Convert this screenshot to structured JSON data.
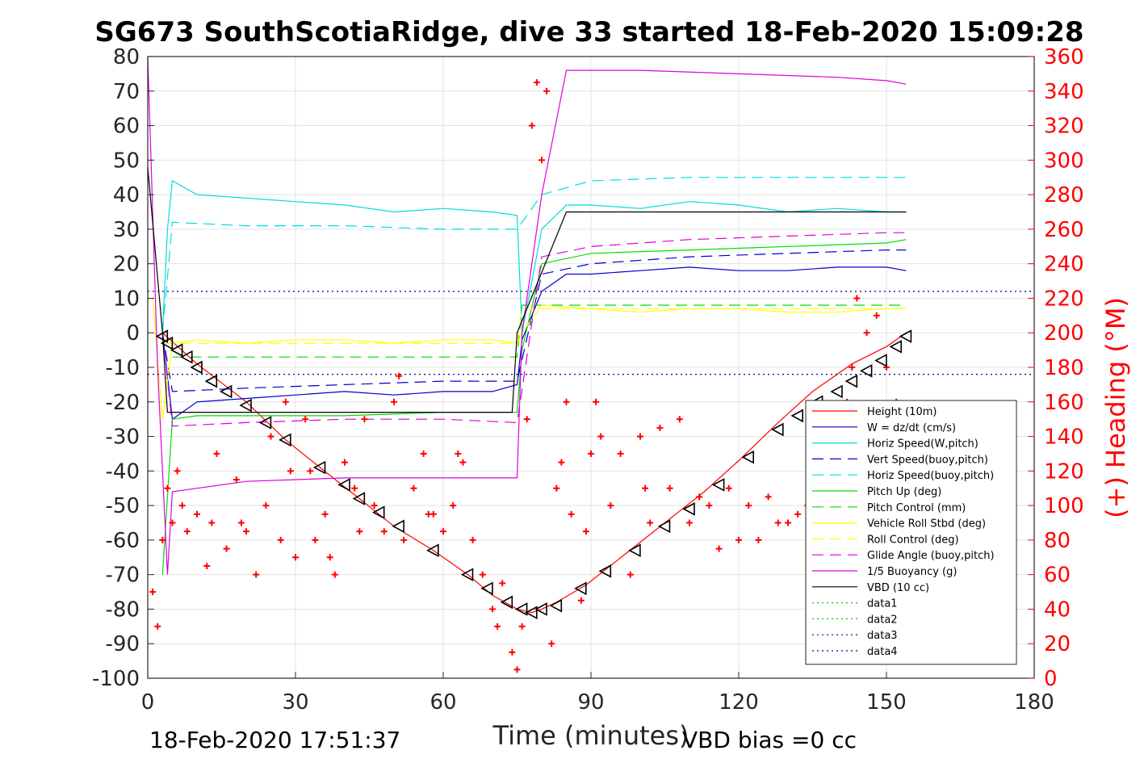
{
  "chart_data": {
    "type": "line",
    "title": "SG673 SouthScotiaRidge, dive 33 started 18-Feb-2020 15:09:28",
    "xlabel": "Time (minutes)",
    "ylabel_right": "(+) Heading (°M)",
    "xlim": [
      0,
      180
    ],
    "ylim_left": [
      -100,
      80
    ],
    "ylim_right": [
      0,
      360
    ],
    "x_ticks": [
      "0",
      "30",
      "60",
      "90",
      "120",
      "150",
      "180"
    ],
    "y_left_ticks": [
      "80",
      "70",
      "60",
      "50",
      "40",
      "30",
      "20",
      "10",
      "0",
      "-10",
      "-20",
      "-30",
      "-40",
      "-50",
      "-60",
      "-70",
      "-80",
      "-90",
      "-100"
    ],
    "y_right_ticks": [
      "360",
      "340",
      "320",
      "300",
      "280",
      "260",
      "240",
      "220",
      "200",
      "180",
      "160",
      "140",
      "120",
      "100",
      "80",
      "60",
      "40",
      "20",
      "0"
    ],
    "grid": true,
    "legend_placement": "lower-right",
    "footer_left": "18-Feb-2020 17:51:37",
    "footer_right": "VBD bias =0 cc",
    "series": [
      {
        "name": "Height (10m)",
        "color": "#ff0000",
        "style": "solid",
        "x": [
          3,
          10,
          20,
          28,
          35,
          43,
          50,
          58,
          65,
          70,
          75,
          78,
          80,
          83,
          89,
          97,
          105,
          113,
          120,
          128,
          135,
          143,
          150,
          154
        ],
        "y": [
          0,
          -9,
          -20,
          -31,
          -39,
          -48,
          -56,
          -63,
          -70,
          -76,
          -80,
          -81,
          -80,
          -78,
          -73,
          -64,
          -55,
          -46,
          -37,
          -26,
          -17,
          -9,
          -4,
          0
        ]
      },
      {
        "name": "W = dz/dt (cm/s)",
        "color": "#0000cc",
        "style": "solid",
        "x": [
          3,
          5,
          10,
          20,
          30,
          40,
          50,
          60,
          70,
          75,
          76,
          80,
          85,
          90,
          100,
          110,
          120,
          130,
          140,
          150,
          154
        ],
        "y": [
          0,
          -25,
          -20,
          -19,
          -18,
          -17,
          -18,
          -17,
          -17,
          -15,
          -2,
          12,
          17,
          17,
          18,
          19,
          18,
          18,
          19,
          19,
          18
        ]
      },
      {
        "name": "Horiz Speed(W,pitch)",
        "color": "#00dddd",
        "style": "solid",
        "x": [
          3,
          4,
          5,
          10,
          20,
          30,
          40,
          50,
          60,
          70,
          75,
          76,
          80,
          85,
          90,
          100,
          110,
          120,
          130,
          140,
          150,
          154
        ],
        "y": [
          0,
          30,
          44,
          40,
          39,
          38,
          37,
          35,
          36,
          35,
          34,
          0,
          30,
          37,
          37,
          36,
          38,
          37,
          35,
          36,
          35,
          35
        ]
      },
      {
        "name": "Vert Speed(buoy,pitch)",
        "color": "#0000cc",
        "style": "dashed",
        "x": [
          3,
          5,
          20,
          40,
          60,
          75,
          80,
          90,
          110,
          130,
          150,
          154
        ],
        "y": [
          0,
          -17,
          -16,
          -15,
          -14,
          -14,
          17,
          20,
          22,
          23,
          24,
          24
        ]
      },
      {
        "name": "Horiz Speed(buoy,pitch)",
        "color": "#00dddd",
        "style": "dashed",
        "x": [
          3,
          5,
          20,
          40,
          60,
          75,
          80,
          90,
          110,
          130,
          150,
          154
        ],
        "y": [
          0,
          32,
          31,
          31,
          30,
          30,
          40,
          44,
          45,
          45,
          45,
          45
        ]
      },
      {
        "name": "Pitch Up (deg)",
        "color": "#00dd00",
        "style": "solid",
        "x": [
          3,
          5,
          10,
          20,
          40,
          60,
          75,
          76,
          80,
          90,
          110,
          130,
          150,
          154
        ],
        "y": [
          -70,
          -25,
          -24,
          -24,
          -24,
          -23,
          -23,
          -5,
          20,
          23,
          24,
          25,
          26,
          27
        ]
      },
      {
        "name": "Pitch Control (mm)",
        "color": "#00dd00",
        "style": "dashed",
        "x": [
          5,
          75,
          76,
          154
        ],
        "y": [
          -7,
          -7,
          8,
          8
        ]
      },
      {
        "name": "Vehicle Roll Stbd (deg)",
        "color": "#ffff00",
        "style": "solid",
        "x": [
          1,
          3,
          5,
          10,
          20,
          30,
          40,
          50,
          60,
          70,
          75,
          76,
          80,
          90,
          100,
          110,
          120,
          130,
          140,
          150,
          154
        ],
        "y": [
          10,
          -25,
          -3,
          -2,
          -3,
          -2,
          -2,
          -3,
          -2,
          -2,
          -3,
          0,
          8,
          7,
          6,
          7,
          7,
          6,
          6,
          7,
          7
        ]
      },
      {
        "name": "Roll Control (deg)",
        "color": "#ffff00",
        "style": "dashed",
        "x": [
          3,
          75,
          76,
          154
        ],
        "y": [
          -3,
          -3,
          7,
          7
        ]
      },
      {
        "name": "Glide Angle (buoy,pitch)",
        "color": "#dd00dd",
        "style": "dashed",
        "x": [
          3,
          5,
          20,
          40,
          60,
          75,
          80,
          90,
          110,
          130,
          150,
          154
        ],
        "y": [
          0,
          -27,
          -26,
          -25,
          -25,
          -26,
          22,
          25,
          27,
          28,
          29,
          29
        ]
      },
      {
        "name": "1/5 Buoyancy (g)",
        "color": "#dd00dd",
        "style": "solid",
        "x": [
          0,
          2,
          4,
          5,
          20,
          40,
          60,
          75,
          76,
          80,
          85,
          100,
          120,
          140,
          150,
          154
        ],
        "y": [
          80,
          -10,
          -70,
          -46,
          -43,
          -42,
          -42,
          -42,
          0,
          40,
          76,
          76,
          75,
          74,
          73,
          72
        ]
      },
      {
        "name": "VBD (10 cc)",
        "color": "#000000",
        "style": "solid",
        "x": [
          0,
          3,
          4,
          74,
          75,
          85,
          154
        ],
        "y": [
          48,
          0,
          -23,
          -23,
          0,
          35,
          35
        ]
      },
      {
        "name": "data1",
        "color": "#00cc00",
        "style": "dotted",
        "x": [],
        "y": []
      },
      {
        "name": "data2",
        "color": "#00cc00",
        "style": "dotted",
        "x": [],
        "y": []
      },
      {
        "name": "data3",
        "color": "#000088",
        "style": "dotted",
        "x": [
          0,
          180
        ],
        "y": [
          12,
          12
        ]
      },
      {
        "name": "data4",
        "color": "#000088",
        "style": "dotted",
        "x": [
          0,
          180
        ],
        "y": [
          -12,
          -12
        ]
      }
    ],
    "heading": {
      "axis": "right",
      "color": "#ff0000",
      "marker": "+",
      "x": [
        1,
        2,
        3,
        4,
        5,
        6,
        7,
        8,
        10,
        12,
        13,
        14,
        16,
        18,
        19,
        20,
        22,
        24,
        25,
        27,
        28,
        29,
        30,
        32,
        33,
        34,
        36,
        37,
        38,
        40,
        42,
        43,
        44,
        46,
        48,
        50,
        51,
        52,
        54,
        56,
        57,
        58,
        60,
        62,
        63,
        64,
        66,
        68,
        70,
        71,
        72,
        74,
        75,
        76,
        77,
        78,
        79,
        80,
        81,
        82,
        83,
        84,
        85,
        86,
        88,
        89,
        90,
        91,
        92,
        94,
        96,
        98,
        100,
        101,
        102,
        104,
        106,
        108,
        110,
        112,
        114,
        116,
        118,
        120,
        122,
        124,
        126,
        128,
        130,
        132,
        134,
        136,
        138,
        140,
        142,
        143,
        144,
        146,
        148,
        150,
        152,
        154
      ],
      "y": [
        50,
        30,
        80,
        110,
        90,
        120,
        100,
        85,
        95,
        65,
        90,
        130,
        75,
        115,
        90,
        85,
        60,
        100,
        140,
        80,
        160,
        120,
        70,
        150,
        120,
        80,
        95,
        70,
        60,
        125,
        110,
        85,
        150,
        100,
        85,
        160,
        175,
        80,
        110,
        130,
        95,
        95,
        85,
        100,
        130,
        125,
        80,
        60,
        40,
        30,
        55,
        15,
        5,
        30,
        150,
        320,
        345,
        300,
        340,
        20,
        110,
        125,
        160,
        95,
        45,
        85,
        130,
        160,
        140,
        100,
        130,
        60,
        140,
        110,
        90,
        145,
        110,
        150,
        90,
        105,
        100,
        75,
        110,
        80,
        100,
        80,
        105,
        90,
        90,
        95,
        100,
        80,
        95,
        110,
        160,
        180,
        220,
        200,
        210,
        180,
        160,
        150
      ]
    },
    "markers": {
      "axis": "left",
      "color": "#000000",
      "marker": "triangle",
      "x": [
        3,
        4,
        6,
        8,
        10,
        13,
        16,
        20,
        24,
        28,
        35,
        40,
        43,
        47,
        51,
        58,
        65,
        69,
        73,
        76,
        78,
        80,
        83,
        88,
        93,
        99,
        105,
        110,
        116,
        122,
        128,
        132,
        136,
        140,
        143,
        146,
        149,
        152,
        154
      ],
      "y": [
        -1,
        -3,
        -5,
        -7,
        -10,
        -14,
        -17,
        -21,
        -26,
        -31,
        -39,
        -44,
        -48,
        -52,
        -56,
        -63,
        -70,
        -74,
        -78,
        -80,
        -81,
        -80,
        -79,
        -74,
        -69,
        -63,
        -56,
        -51,
        -44,
        -36,
        -28,
        -24,
        -20,
        -17,
        -14,
        -11,
        -8,
        -4,
        -1
      ]
    }
  }
}
